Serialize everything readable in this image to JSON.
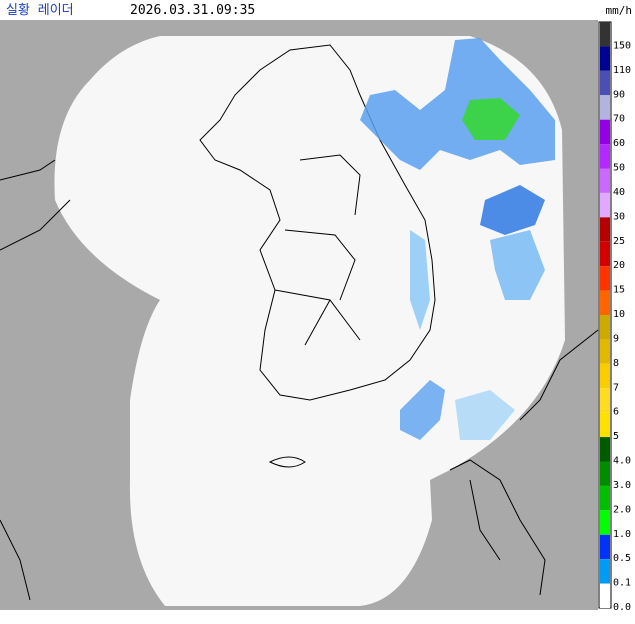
{
  "header": {
    "title": "실황 레이더",
    "timestamp": "2026.03.31.09:35"
  },
  "legend": {
    "unit": "mm/h",
    "levels": [
      {
        "label": "150",
        "color": "#333333"
      },
      {
        "label": "110",
        "color": "#000390"
      },
      {
        "label": "90",
        "color": "#4c4eb1"
      },
      {
        "label": "70",
        "color": "#b3b4de"
      },
      {
        "label": "60",
        "color": "#9300e4"
      },
      {
        "label": "50",
        "color": "#b329ff"
      },
      {
        "label": "40",
        "color": "#c969ff"
      },
      {
        "label": "30",
        "color": "#e0a9ff"
      },
      {
        "label": "25",
        "color": "#b40000"
      },
      {
        "label": "20",
        "color": "#d20000"
      },
      {
        "label": "15",
        "color": "#ff3300"
      },
      {
        "label": "10",
        "color": "#ff6600"
      },
      {
        "label": "9",
        "color": "#ccaa00"
      },
      {
        "label": "8",
        "color": "#e0b900"
      },
      {
        "label": "7",
        "color": "#f9cd00"
      },
      {
        "label": "6",
        "color": "#ffdc1f"
      },
      {
        "label": "5",
        "color": "#ffe100"
      },
      {
        "label": "4.0",
        "color": "#005a00"
      },
      {
        "label": "3.0",
        "color": "#008c00"
      },
      {
        "label": "2.0",
        "color": "#00be00"
      },
      {
        "label": "1.0",
        "color": "#00ff00"
      },
      {
        "label": "0.5",
        "color": "#0033f5"
      },
      {
        "label": "0.1",
        "color": "#009bf5"
      },
      {
        "label": "0.0",
        "color": "#ffffff"
      }
    ]
  }
}
